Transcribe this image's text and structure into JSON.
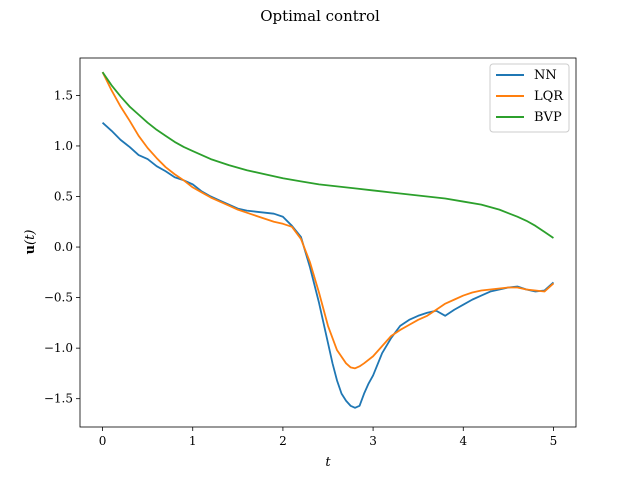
{
  "chart_data": {
    "type": "line",
    "title": "Optimal control",
    "xlabel": "t",
    "ylabel": "u(t)",
    "ylabel_bold": "u",
    "ylabel_rest": "(t)",
    "xlim": [
      -0.25,
      5.25
    ],
    "ylim": [
      -1.78,
      1.87
    ],
    "xticks": [
      0,
      1,
      2,
      3,
      4,
      5
    ],
    "xtick_labels": [
      "0",
      "1",
      "2",
      "3",
      "4",
      "5"
    ],
    "yticks": [
      -1.5,
      -1.0,
      -0.5,
      0.0,
      0.5,
      1.0,
      1.5
    ],
    "ytick_labels": [
      "−1.5",
      "−1.0",
      "−0.5",
      "0.0",
      "0.5",
      "1.0",
      "1.5"
    ],
    "grid": false,
    "legend_position": "top-right",
    "series": [
      {
        "name": "NN",
        "color": "#1f77b4",
        "x": [
          0,
          0.1,
          0.2,
          0.3,
          0.4,
          0.5,
          0.6,
          0.7,
          0.8,
          0.9,
          1.0,
          1.1,
          1.2,
          1.3,
          1.4,
          1.5,
          1.6,
          1.7,
          1.8,
          1.9,
          2.0,
          2.1,
          2.2,
          2.3,
          2.4,
          2.5,
          2.55,
          2.6,
          2.65,
          2.7,
          2.75,
          2.8,
          2.85,
          2.9,
          2.95,
          3.0,
          3.1,
          3.2,
          3.3,
          3.4,
          3.5,
          3.6,
          3.7,
          3.8,
          3.9,
          4.0,
          4.1,
          4.2,
          4.3,
          4.4,
          4.5,
          4.6,
          4.7,
          4.8,
          4.9,
          5.0
        ],
        "y": [
          1.23,
          1.15,
          1.06,
          0.99,
          0.91,
          0.87,
          0.8,
          0.75,
          0.69,
          0.66,
          0.62,
          0.55,
          0.5,
          0.46,
          0.42,
          0.38,
          0.36,
          0.35,
          0.34,
          0.33,
          0.3,
          0.21,
          0.1,
          -0.2,
          -0.55,
          -0.95,
          -1.15,
          -1.32,
          -1.45,
          -1.52,
          -1.57,
          -1.59,
          -1.57,
          -1.45,
          -1.35,
          -1.27,
          -1.05,
          -0.9,
          -0.78,
          -0.72,
          -0.68,
          -0.65,
          -0.63,
          -0.68,
          -0.62,
          -0.57,
          -0.52,
          -0.48,
          -0.44,
          -0.42,
          -0.4,
          -0.39,
          -0.42,
          -0.44,
          -0.43,
          -0.35
        ]
      },
      {
        "name": "LQR",
        "color": "#ff7f0e",
        "x": [
          0,
          0.1,
          0.2,
          0.3,
          0.4,
          0.5,
          0.6,
          0.7,
          0.8,
          0.9,
          1.0,
          1.1,
          1.2,
          1.3,
          1.4,
          1.5,
          1.6,
          1.7,
          1.8,
          1.9,
          2.0,
          2.1,
          2.2,
          2.3,
          2.4,
          2.5,
          2.6,
          2.7,
          2.75,
          2.8,
          2.85,
          2.9,
          3.0,
          3.1,
          3.2,
          3.3,
          3.4,
          3.5,
          3.6,
          3.7,
          3.8,
          3.9,
          4.0,
          4.1,
          4.2,
          4.3,
          4.4,
          4.5,
          4.6,
          4.7,
          4.8,
          4.9,
          5.0
        ],
        "y": [
          1.73,
          1.55,
          1.39,
          1.25,
          1.1,
          0.98,
          0.88,
          0.79,
          0.72,
          0.66,
          0.59,
          0.54,
          0.49,
          0.45,
          0.41,
          0.37,
          0.34,
          0.31,
          0.28,
          0.25,
          0.23,
          0.2,
          0.08,
          -0.15,
          -0.45,
          -0.78,
          -1.02,
          -1.15,
          -1.19,
          -1.2,
          -1.18,
          -1.15,
          -1.08,
          -0.98,
          -0.88,
          -0.82,
          -0.77,
          -0.72,
          -0.68,
          -0.62,
          -0.56,
          -0.52,
          -0.48,
          -0.45,
          -0.43,
          -0.42,
          -0.41,
          -0.4,
          -0.4,
          -0.42,
          -0.43,
          -0.44,
          -0.36
        ]
      },
      {
        "name": "BVP",
        "color": "#2ca02c",
        "x": [
          0,
          0.1,
          0.2,
          0.3,
          0.4,
          0.5,
          0.6,
          0.7,
          0.8,
          0.9,
          1.0,
          1.2,
          1.4,
          1.6,
          1.8,
          2.0,
          2.2,
          2.4,
          2.6,
          2.8,
          3.0,
          3.2,
          3.4,
          3.6,
          3.8,
          4.0,
          4.2,
          4.4,
          4.6,
          4.7,
          4.8,
          4.9,
          5.0
        ],
        "y": [
          1.73,
          1.6,
          1.49,
          1.39,
          1.31,
          1.23,
          1.16,
          1.1,
          1.04,
          0.99,
          0.95,
          0.87,
          0.81,
          0.76,
          0.72,
          0.68,
          0.65,
          0.62,
          0.6,
          0.58,
          0.56,
          0.54,
          0.52,
          0.5,
          0.48,
          0.45,
          0.42,
          0.37,
          0.3,
          0.26,
          0.21,
          0.15,
          0.09
        ]
      }
    ]
  }
}
